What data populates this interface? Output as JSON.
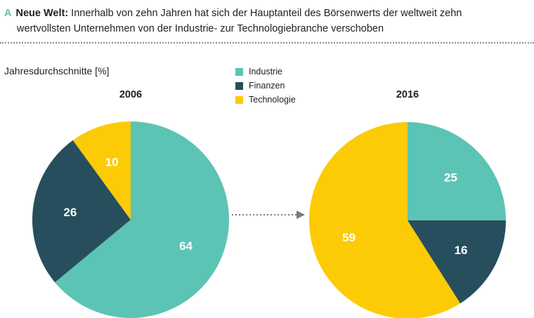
{
  "header": {
    "letter": "A",
    "line1_bold": "Neue Welt:",
    "line1_rest": " Innerhalb von zehn Jahren hat sich der Hauptanteil des Börsenwerts der weltweit zehn",
    "line2": "wertvollsten Unternehmen von der Industrie- zur Technologiebranche verschoben"
  },
  "subtitle": "Jahresdurchschnitte [%]",
  "legend": [
    {
      "label": "Industrie",
      "color": "#5cc4b4"
    },
    {
      "label": "Finanzen",
      "color": "#274e5c"
    },
    {
      "label": "Technologie",
      "color": "#fccb05"
    }
  ],
  "colors": {
    "accent": "#5cc4b4",
    "divider": "#8a8a8a",
    "arrow": "#7a7a7a"
  },
  "chart_data": [
    {
      "type": "pie",
      "title": "2006",
      "slices": [
        {
          "name": "Industrie",
          "value": 64
        },
        {
          "name": "Finanzen",
          "value": 26
        },
        {
          "name": "Technologie",
          "value": 10
        }
      ]
    },
    {
      "type": "pie",
      "title": "2016",
      "slices": [
        {
          "name": "Industrie",
          "value": 25
        },
        {
          "name": "Finanzen",
          "value": 16
        },
        {
          "name": "Technologie",
          "value": 59
        }
      ]
    }
  ]
}
